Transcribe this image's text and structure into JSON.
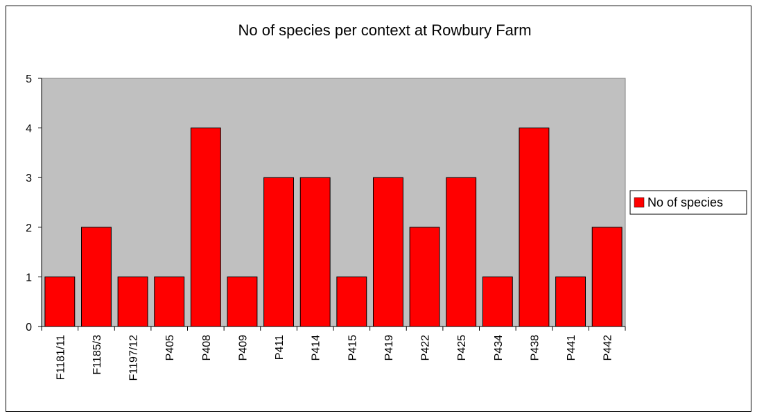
{
  "chart_data": {
    "type": "bar",
    "title": "No of species per context at Rowbury Farm",
    "xlabel": "",
    "ylabel": "",
    "categories": [
      "F1181/11",
      "F1185/3",
      "F1197/12",
      "P405",
      "P408",
      "P409",
      "P411",
      "P414",
      "P415",
      "P419",
      "P422",
      "P425",
      "P434",
      "P438",
      "P441",
      "P442"
    ],
    "series": [
      {
        "name": "No of species",
        "values": [
          1,
          2,
          1,
          1,
          4,
          1,
          3,
          3,
          1,
          3,
          2,
          3,
          1,
          4,
          1,
          2
        ]
      }
    ],
    "ylim": [
      0,
      5
    ],
    "yticks": [
      0,
      1,
      2,
      3,
      4,
      5
    ],
    "grid": false,
    "legend_position": "right",
    "colors": {
      "bar": "#ff0000",
      "plot_background": "#c0c0c0",
      "axis": "#808080"
    }
  }
}
